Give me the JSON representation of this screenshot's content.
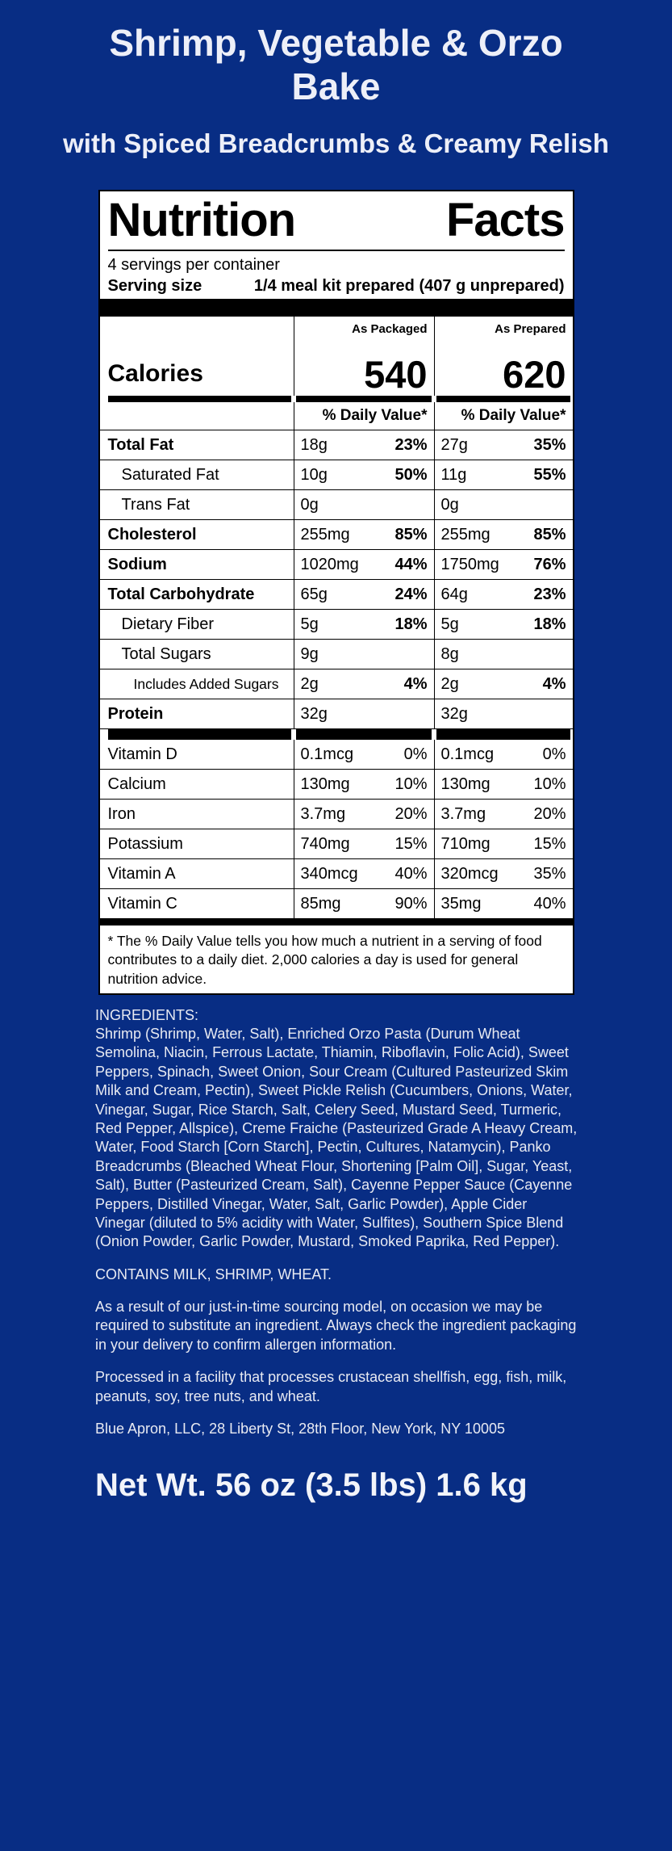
{
  "page": {
    "title": "Shrimp, Vegetable & Orzo Bake",
    "subtitle": "with Spiced Breadcrumbs & Creamy Relish",
    "net_weight": "Net Wt. 56 oz (3.5 lbs) 1.6 kg",
    "background_color": "#082d84"
  },
  "nutrition": {
    "title_word1": "Nutrition",
    "title_word2": "Facts",
    "servings_per_container": "4 servings per container",
    "serving_size_label": "Serving size",
    "serving_size_value": "1/4 meal kit prepared (407 g unprepared)",
    "col_headers": [
      "As Packaged",
      "As Prepared"
    ],
    "calories_label": "Calories",
    "calories": [
      "540",
      "620"
    ],
    "dv_header": "% Daily Value*",
    "rows": [
      {
        "name": "Total Fat",
        "bold": true,
        "indent": 0,
        "v1": "18g",
        "p1": "23%",
        "v2": "27g",
        "p2": "35%"
      },
      {
        "name": "Saturated Fat",
        "bold": false,
        "indent": 1,
        "v1": "10g",
        "p1": "50%",
        "v2": "11g",
        "p2": "55%"
      },
      {
        "name": "Trans Fat",
        "bold": false,
        "indent": 1,
        "v1": "0g",
        "p1": "",
        "v2": "0g",
        "p2": ""
      },
      {
        "name": "Cholesterol",
        "bold": true,
        "indent": 0,
        "v1": "255mg",
        "p1": "85%",
        "v2": "255mg",
        "p2": "85%"
      },
      {
        "name": "Sodium",
        "bold": true,
        "indent": 0,
        "v1": "1020mg",
        "p1": "44%",
        "v2": "1750mg",
        "p2": "76%"
      },
      {
        "name": "Total Carbohydrate",
        "bold": true,
        "indent": 0,
        "v1": "65g",
        "p1": "24%",
        "v2": "64g",
        "p2": "23%"
      },
      {
        "name": "Dietary Fiber",
        "bold": false,
        "indent": 1,
        "v1": "5g",
        "p1": "18%",
        "v2": "5g",
        "p2": "18%"
      },
      {
        "name": "Total Sugars",
        "bold": false,
        "indent": 1,
        "v1": "9g",
        "p1": "",
        "v2": "8g",
        "p2": ""
      },
      {
        "name": "Includes Added Sugars",
        "bold": false,
        "indent": 2,
        "v1": "2g",
        "p1": "4%",
        "v2": "2g",
        "p2": "4%"
      },
      {
        "name": "Protein",
        "bold": true,
        "indent": 0,
        "v1": "32g",
        "p1": "",
        "v2": "32g",
        "p2": ""
      }
    ],
    "vitamins": [
      {
        "name": "Vitamin D",
        "v1": "0.1mcg",
        "p1": "0%",
        "v2": "0.1mcg",
        "p2": "0%"
      },
      {
        "name": "Calcium",
        "v1": "130mg",
        "p1": "10%",
        "v2": "130mg",
        "p2": "10%"
      },
      {
        "name": "Iron",
        "v1": "3.7mg",
        "p1": "20%",
        "v2": "3.7mg",
        "p2": "20%"
      },
      {
        "name": "Potassium",
        "v1": "740mg",
        "p1": "15%",
        "v2": "710mg",
        "p2": "15%"
      },
      {
        "name": "Vitamin A",
        "v1": "340mcg",
        "p1": "40%",
        "v2": "320mcg",
        "p2": "35%"
      },
      {
        "name": "Vitamin C",
        "v1": "85mg",
        "p1": "90%",
        "v2": "35mg",
        "p2": "40%"
      }
    ],
    "footnote": "* The % Daily Value tells you how much a nutrient in a serving of food contributes to a daily diet. 2,000 calories a day is used for general nutrition advice."
  },
  "ingredients": {
    "heading": "INGREDIENTS:",
    "list": "Shrimp (Shrimp, Water, Salt), Enriched Orzo Pasta (Durum Wheat Semolina, Niacin, Ferrous Lactate, Thiamin, Riboflavin, Folic Acid), Sweet Peppers, Spinach, Sweet Onion, Sour Cream (Cultured Pasteurized Skim Milk and Cream, Pectin), Sweet Pickle Relish (Cucumbers, Onions, Water, Vinegar, Sugar, Rice Starch, Salt, Celery Seed, Mustard Seed, Turmeric, Red Pepper, Allspice), Creme Fraiche (Pasteurized Grade A Heavy Cream, Water, Food Starch [Corn Starch], Pectin, Cultures, Natamycin), Panko Breadcrumbs (Bleached Wheat Flour, Shortening [Palm Oil], Sugar, Yeast, Salt), Butter (Pasteurized Cream, Salt), Cayenne Pepper Sauce (Cayenne Peppers, Distilled Vinegar, Water, Salt, Garlic Powder), Apple Cider Vinegar (diluted to 5% acidity with Water, Sulfites), Southern Spice Blend (Onion Powder, Garlic Powder, Mustard, Smoked Paprika, Red Pepper).",
    "contains": "CONTAINS MILK, SHRIMP, WHEAT.",
    "substitution_note": "As a result of our just-in-time sourcing model, on occasion we may be required to substitute an ingredient. Always check the ingredient packaging in your delivery to confirm allergen information.",
    "facility_note": "Processed in a facility that processes crustacean shellfish, egg, fish, milk, peanuts, soy, tree nuts, and wheat.",
    "address": "Blue Apron, LLC, 28 Liberty St, 28th Floor, New York, NY 10005"
  }
}
